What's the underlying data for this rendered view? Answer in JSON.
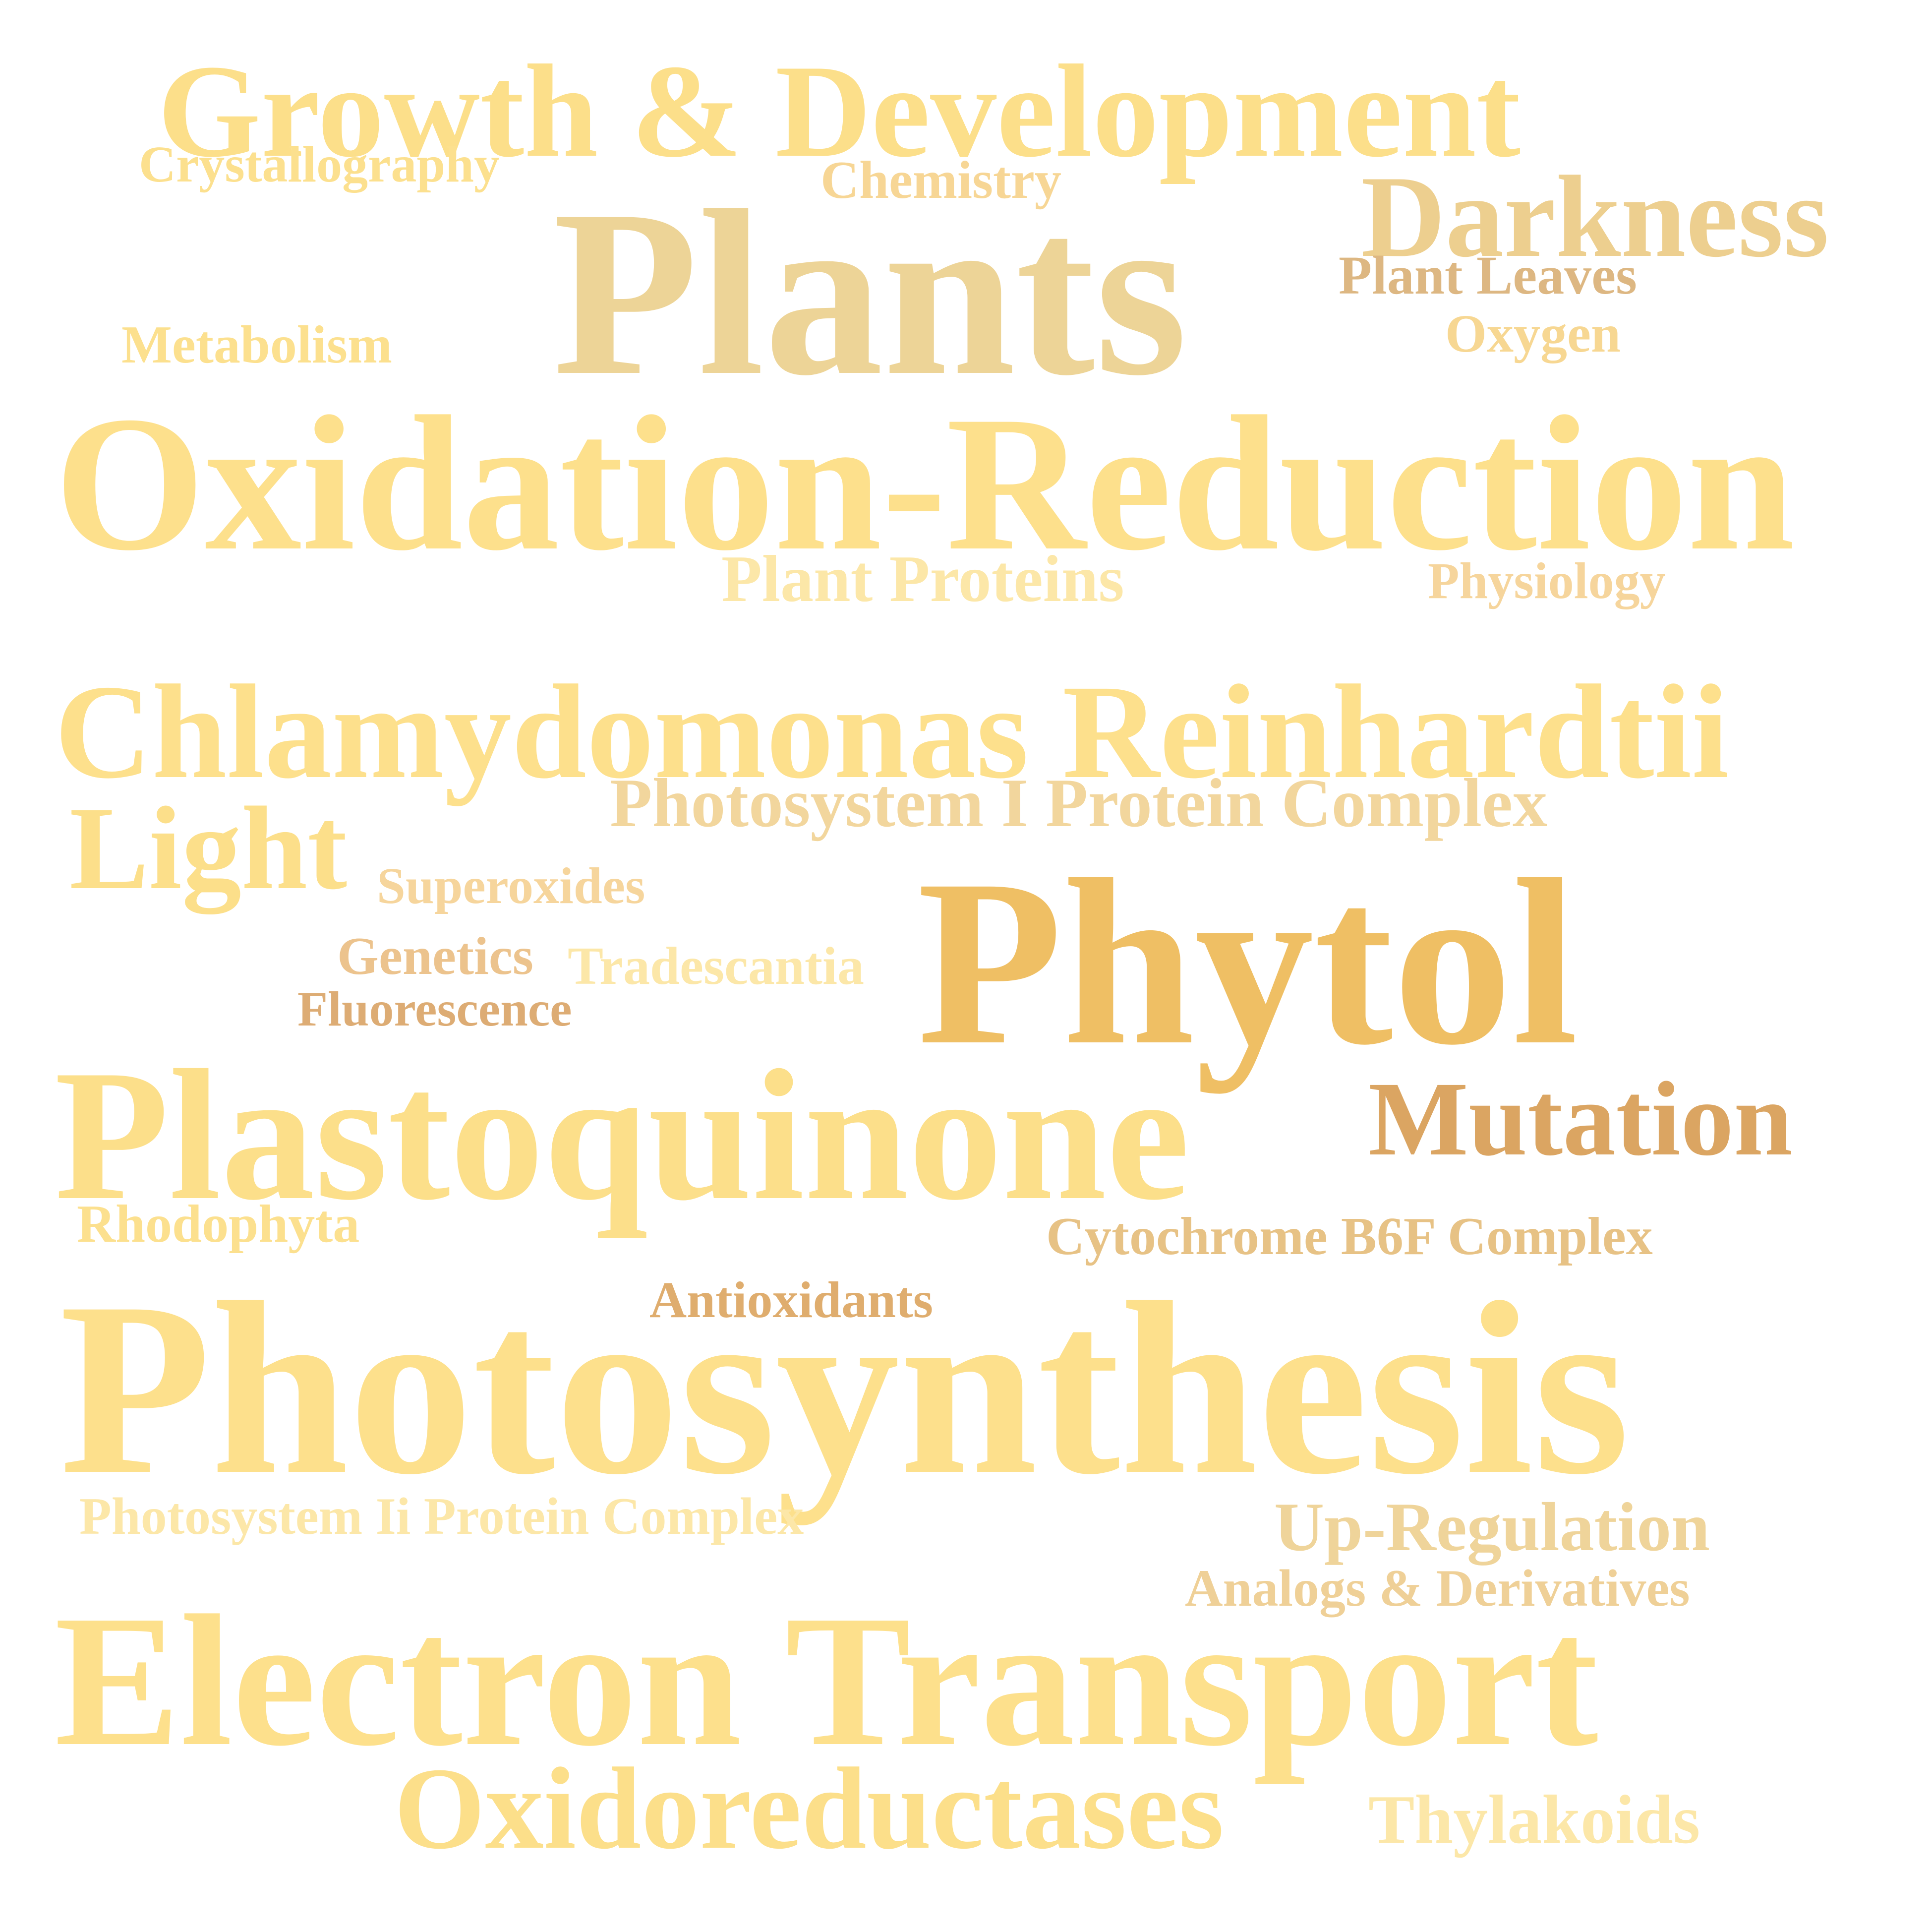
{
  "word_cloud": {
    "words": [
      {
        "text": "Growth & Development",
        "color": "#FCDF8A"
      },
      {
        "text": "Crystallography",
        "color": "#FCE08E"
      },
      {
        "text": "Chemistry",
        "color": "#F7D695"
      },
      {
        "text": "Darkness",
        "color": "#EDCF8F"
      },
      {
        "text": "Plants",
        "color": "#EDD497"
      },
      {
        "text": "Plant Leaves",
        "color": "#DDB782"
      },
      {
        "text": "Oxygen",
        "color": "#F7D792"
      },
      {
        "text": "Metabolism",
        "color": "#FCE08E"
      },
      {
        "text": "Oxidation-Reduction",
        "color": "#FDE08C"
      },
      {
        "text": "Plant Proteins",
        "color": "#FCE7A8"
      },
      {
        "text": "Physiology",
        "color": "#F6D59C"
      },
      {
        "text": "Chlamydomonas Reinhardtii",
        "color": "#FDE08C"
      },
      {
        "text": "Photosystem I Protein Complex",
        "color": "#F2D69D"
      },
      {
        "text": "Light",
        "color": "#FCDF8A"
      },
      {
        "text": "Superoxides",
        "color": "#F6D59C"
      },
      {
        "text": "Phytol",
        "color": "#EFBF64"
      },
      {
        "text": "Genetics",
        "color": "#ECC38D"
      },
      {
        "text": "Tradescantia",
        "color": "#FCE7A8"
      },
      {
        "text": "Fluorescence",
        "color": "#DDAC74"
      },
      {
        "text": "Plastoquinone",
        "color": "#FCDF8A"
      },
      {
        "text": "Mutation",
        "color": "#DBA562"
      },
      {
        "text": "Rhodophyta",
        "color": "#FCE08E"
      },
      {
        "text": "Cytochrome B6F Complex",
        "color": "#E7C285"
      },
      {
        "text": "Antioxidants",
        "color": "#DFAD6E"
      },
      {
        "text": "Photosynthesis",
        "color": "#FDE08C"
      },
      {
        "text": "Photosystem Ii Protein Complex",
        "color": "#FCE7A8"
      },
      {
        "text": "Up-Regulation",
        "color": "#EFD49A"
      },
      {
        "text": "Analogs & Derivatives",
        "color": "#EFD097"
      },
      {
        "text": "Electron Transport",
        "color": "#FDE08C"
      },
      {
        "text": "Oxidoreductases",
        "color": "#FCDF8A"
      },
      {
        "text": "Thylakoids",
        "color": "#FCE7A8"
      }
    ]
  }
}
